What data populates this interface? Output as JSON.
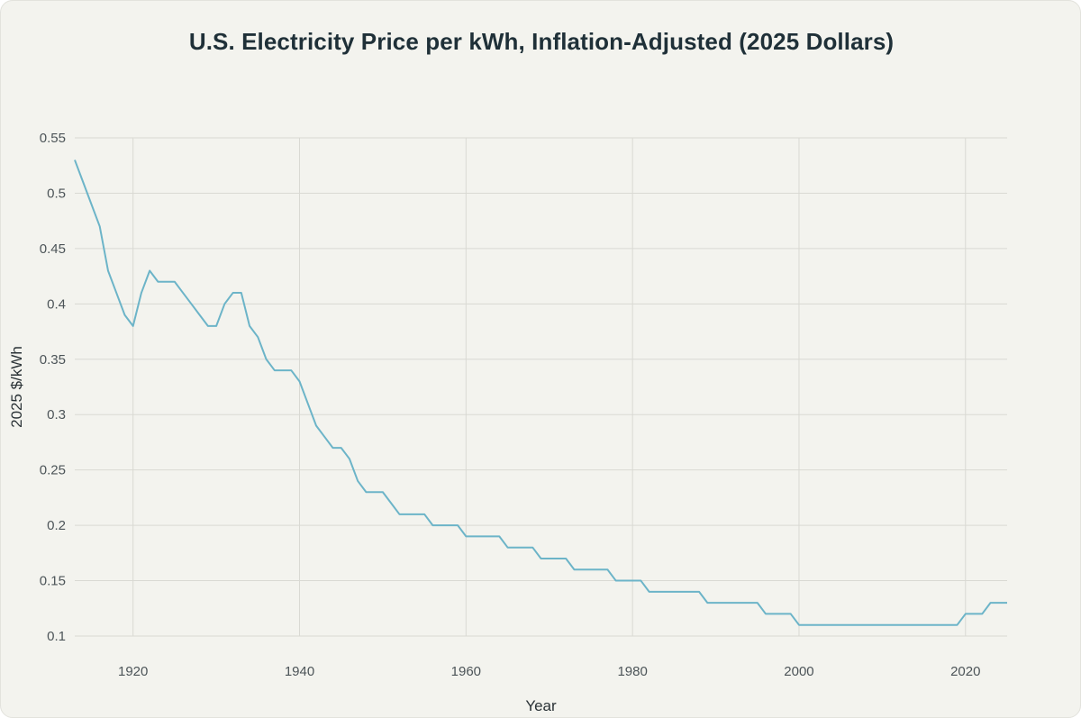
{
  "chart_data": {
    "type": "line",
    "title": "U.S. Electricity Price per kWh, Inflation-Adjusted (2025 Dollars)",
    "xlabel": "Year",
    "ylabel": "2025 $/kWh",
    "xlim": [
      1913,
      2025
    ],
    "ylim": [
      0.1,
      0.55
    ],
    "x_ticks": [
      1920,
      1940,
      1960,
      1980,
      2000,
      2020
    ],
    "y_ticks": [
      0.1,
      0.15,
      0.2,
      0.25,
      0.3,
      0.35,
      0.4,
      0.45,
      0.5,
      0.55
    ],
    "y_tick_labels": [
      "0.1",
      "0.15",
      "0.2",
      "0.25",
      "0.3",
      "0.35",
      "0.4",
      "0.45",
      "0.5",
      "0.55"
    ],
    "grid": true,
    "line_color": "#6cb4c8",
    "series": [
      {
        "name": "",
        "x": [
          1913,
          1914,
          1915,
          1916,
          1917,
          1918,
          1919,
          1920,
          1921,
          1922,
          1923,
          1924,
          1925,
          1926,
          1927,
          1928,
          1929,
          1930,
          1931,
          1932,
          1933,
          1934,
          1935,
          1936,
          1937,
          1938,
          1939,
          1940,
          1941,
          1942,
          1943,
          1944,
          1945,
          1946,
          1947,
          1948,
          1949,
          1950,
          1951,
          1952,
          1953,
          1954,
          1955,
          1956,
          1957,
          1958,
          1959,
          1960,
          1961,
          1962,
          1963,
          1964,
          1965,
          1966,
          1967,
          1968,
          1969,
          1970,
          1971,
          1972,
          1973,
          1974,
          1975,
          1976,
          1977,
          1978,
          1979,
          1980,
          1981,
          1982,
          1983,
          1984,
          1985,
          1986,
          1987,
          1988,
          1989,
          1990,
          1991,
          1992,
          1993,
          1994,
          1995,
          1996,
          1997,
          1998,
          1999,
          2000,
          2001,
          2002,
          2003,
          2004,
          2005,
          2006,
          2007,
          2008,
          2009,
          2010,
          2011,
          2012,
          2013,
          2014,
          2015,
          2016,
          2017,
          2018,
          2019,
          2020,
          2021,
          2022,
          2023,
          2024,
          2025
        ],
        "y": [
          0.53,
          0.51,
          0.49,
          0.47,
          0.43,
          0.41,
          0.39,
          0.38,
          0.41,
          0.43,
          0.42,
          0.42,
          0.42,
          0.41,
          0.4,
          0.39,
          0.38,
          0.38,
          0.4,
          0.41,
          0.41,
          0.38,
          0.37,
          0.35,
          0.34,
          0.34,
          0.34,
          0.33,
          0.31,
          0.29,
          0.28,
          0.27,
          0.27,
          0.26,
          0.24,
          0.23,
          0.23,
          0.23,
          0.22,
          0.21,
          0.21,
          0.21,
          0.21,
          0.2,
          0.2,
          0.2,
          0.2,
          0.19,
          0.19,
          0.19,
          0.19,
          0.19,
          0.18,
          0.18,
          0.18,
          0.18,
          0.17,
          0.17,
          0.17,
          0.17,
          0.16,
          0.16,
          0.16,
          0.16,
          0.16,
          0.15,
          0.15,
          0.15,
          0.15,
          0.14,
          0.14,
          0.14,
          0.14,
          0.14,
          0.14,
          0.14,
          0.13,
          0.13,
          0.13,
          0.13,
          0.13,
          0.13,
          0.13,
          0.12,
          0.12,
          0.12,
          0.12,
          0.11,
          0.11,
          0.11,
          0.11,
          0.11,
          0.11,
          0.11,
          0.11,
          0.11,
          0.11,
          0.11,
          0.11,
          0.11,
          0.11,
          0.11,
          0.11,
          0.11,
          0.11,
          0.11,
          0.11,
          0.12,
          0.12,
          0.12,
          0.13,
          0.13,
          0.13
        ]
      }
    ]
  }
}
